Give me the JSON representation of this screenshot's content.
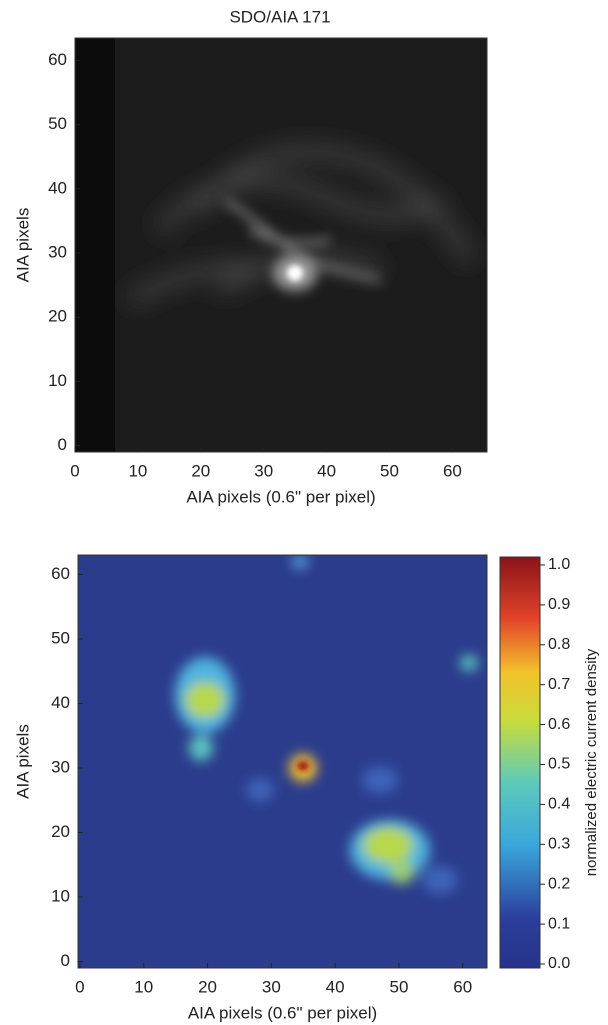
{
  "chart_data": [
    {
      "type": "image",
      "title": "SDO/AIA 171",
      "x_label": "AIA pixels (0.6\" per pixel)",
      "y_label": "AIA pixels",
      "xlim": [
        0,
        65.5
      ],
      "ylim": [
        -1,
        63.5
      ],
      "xticks": [
        0,
        10,
        20,
        30,
        40,
        50,
        60
      ],
      "yticks": [
        0,
        10,
        20,
        30,
        40,
        50,
        60
      ],
      "colormap": "gray"
    },
    {
      "type": "image",
      "x_label": "AIA pixels (0.6\" per pixel)",
      "y_label": "AIA pixels",
      "xlim": [
        -0.3,
        63.8
      ],
      "ylim": [
        -1,
        63
      ],
      "xticks": [
        0,
        10,
        20,
        30,
        40,
        50,
        60
      ],
      "yticks": [
        0,
        10,
        20,
        30,
        40,
        50,
        60
      ],
      "colormap": "jet",
      "colorbar": {
        "label": "normalized electric current density",
        "lim": [
          -0.01,
          1.02
        ],
        "ticks": [
          {
            "value": 0,
            "label": "0.0"
          },
          0.1,
          0.2,
          0.3,
          0.4,
          0.5,
          0.6,
          0.7,
          0.8,
          0.9,
          {
            "value": 1,
            "label": "1.0"
          }
        ]
      }
    }
  ]
}
